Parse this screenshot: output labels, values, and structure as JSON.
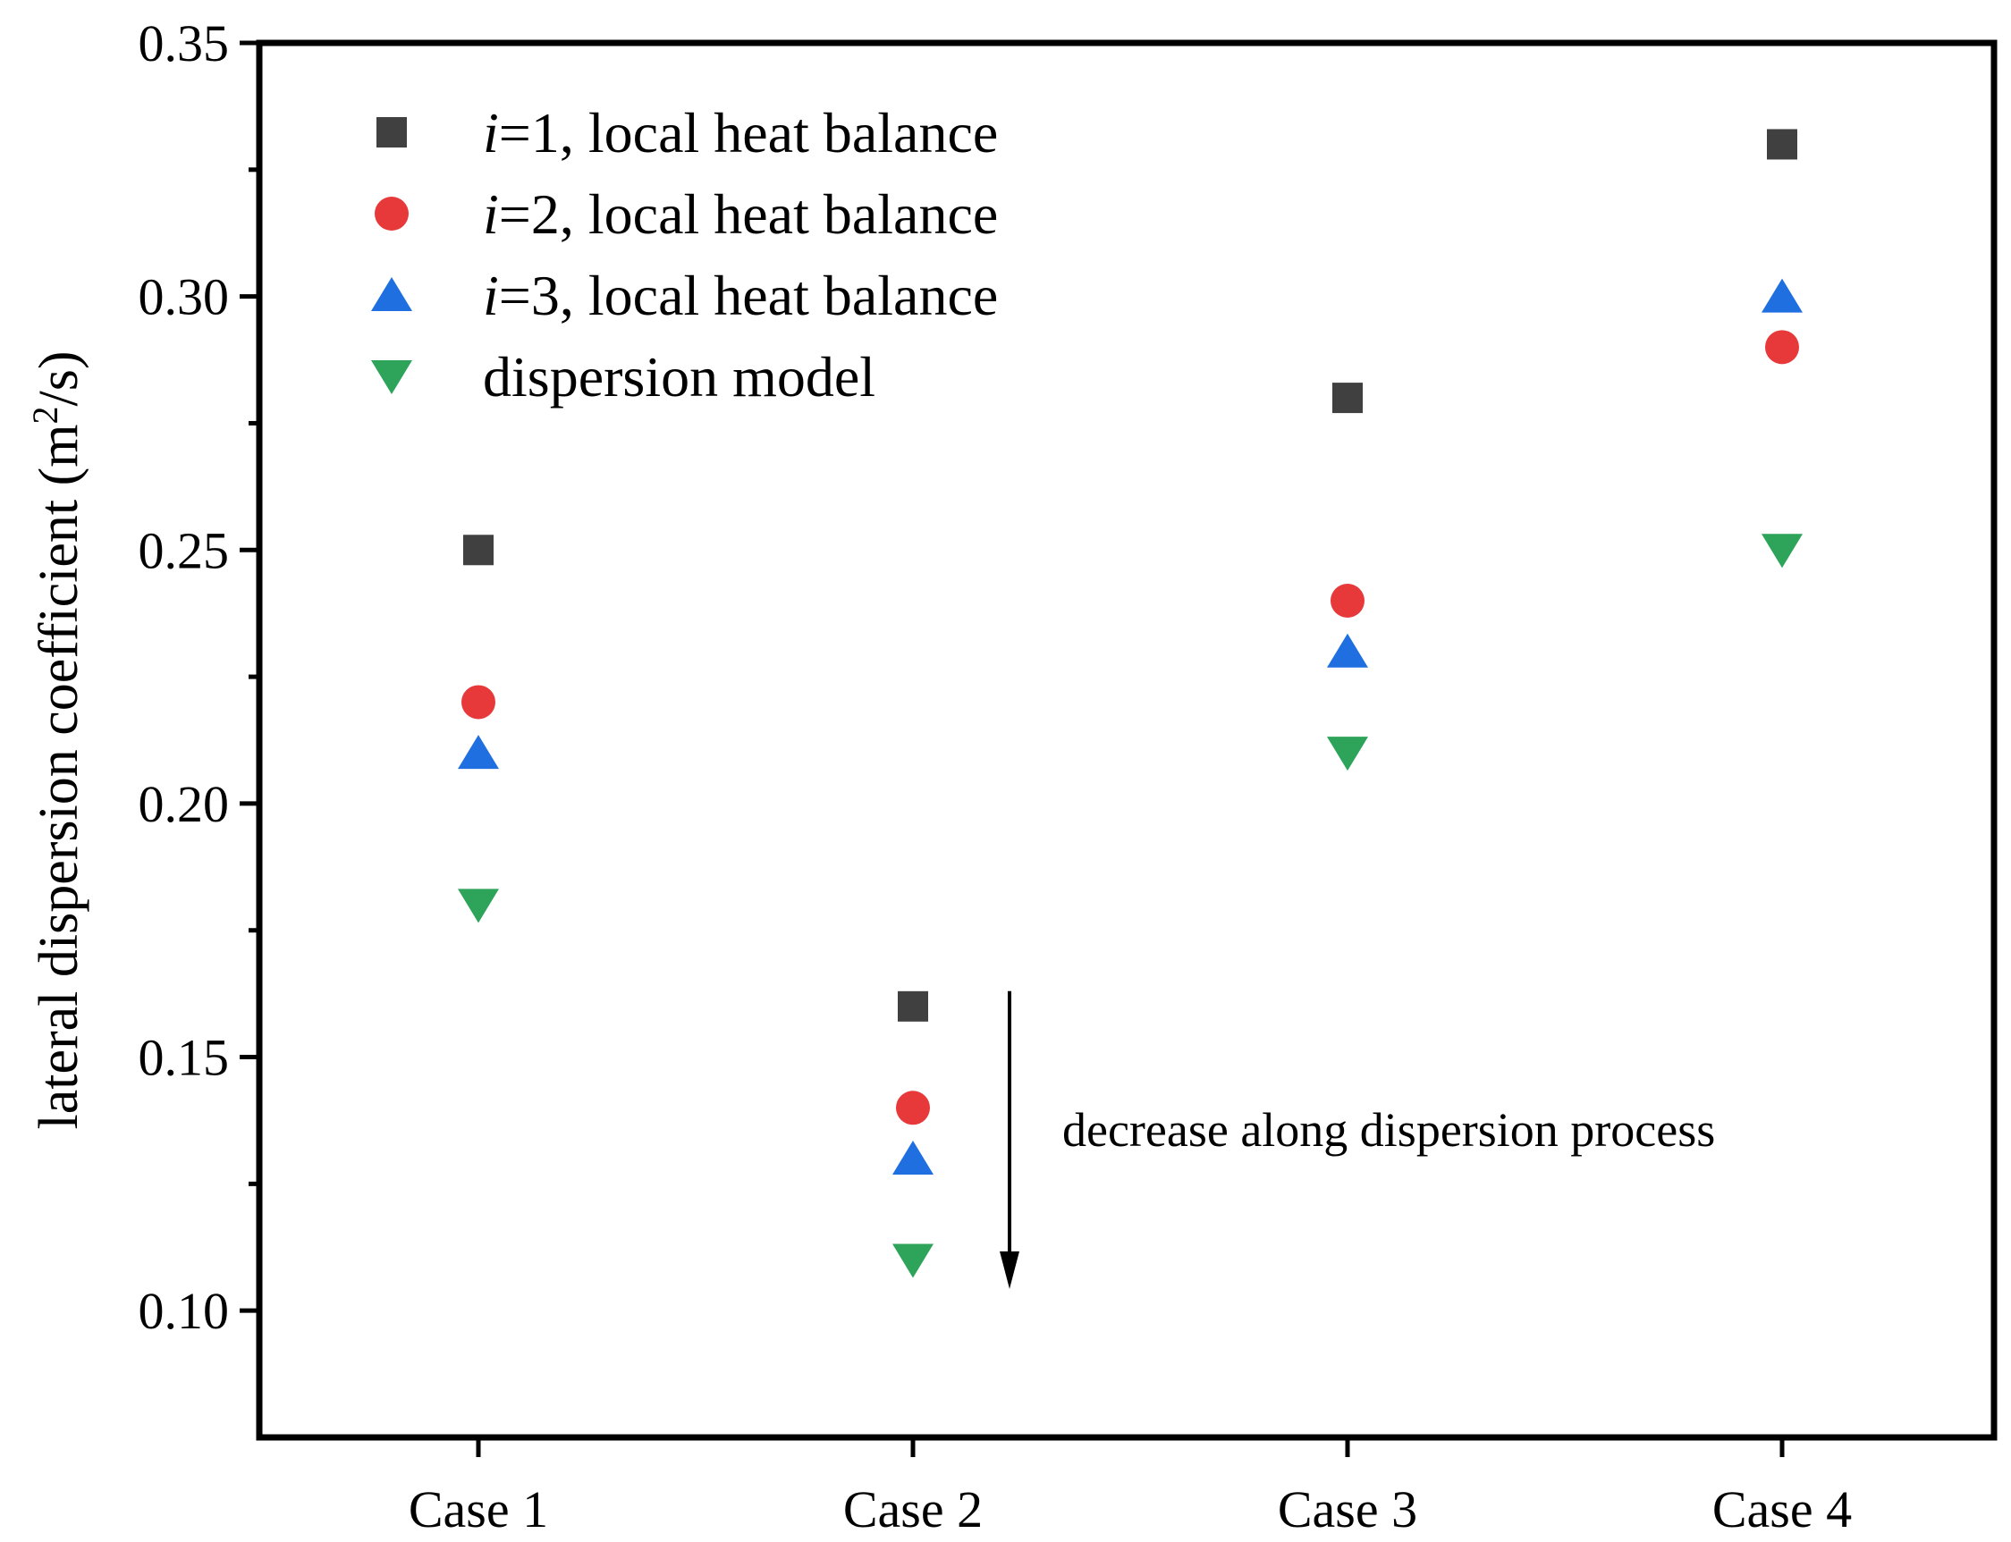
{
  "chart_data": {
    "type": "scatter",
    "title": "",
    "xlabel": "",
    "ylabel": {
      "prefix": "lateral dispersion coefficient (m",
      "sup": "2",
      "suffix": "/s)"
    },
    "categories": [
      "Case 1",
      "Case 2",
      "Case 3",
      "Case 4"
    ],
    "ylim": [
      0.075,
      0.35
    ],
    "yticks": [
      0.1,
      0.15,
      0.2,
      0.25,
      0.3,
      0.35
    ],
    "ytick_labels": [
      "0.10",
      "0.15",
      "0.20",
      "0.25",
      "0.30",
      "0.35"
    ],
    "series": [
      {
        "key": "s1",
        "italic": "i",
        "name": "=1, local heat balance",
        "marker": "square",
        "color": "#404040",
        "values": [
          0.25,
          0.16,
          0.28,
          0.33
        ]
      },
      {
        "key": "s2",
        "italic": "i",
        "name": "=2, local heat balance",
        "marker": "circle",
        "color": "#e8393a",
        "values": [
          0.22,
          0.14,
          0.24,
          0.29
        ]
      },
      {
        "key": "s3",
        "italic": "i",
        "name": "=3, local heat balance",
        "marker": "triangle-up",
        "color": "#1f6fe0",
        "values": [
          0.21,
          0.13,
          0.23,
          0.3
        ]
      },
      {
        "key": "s4",
        "italic": "",
        "name": "dispersion model",
        "marker": "triangle-down",
        "color": "#2ea35a",
        "values": [
          0.18,
          0.11,
          0.21,
          0.25
        ]
      }
    ],
    "legend": {
      "position": "top-left"
    },
    "annotation": {
      "text": "decrease along dispersion process",
      "arrow_from_y": 0.163,
      "arrow_to_y": 0.105,
      "arrow_x_category_offset": 0.23
    }
  }
}
